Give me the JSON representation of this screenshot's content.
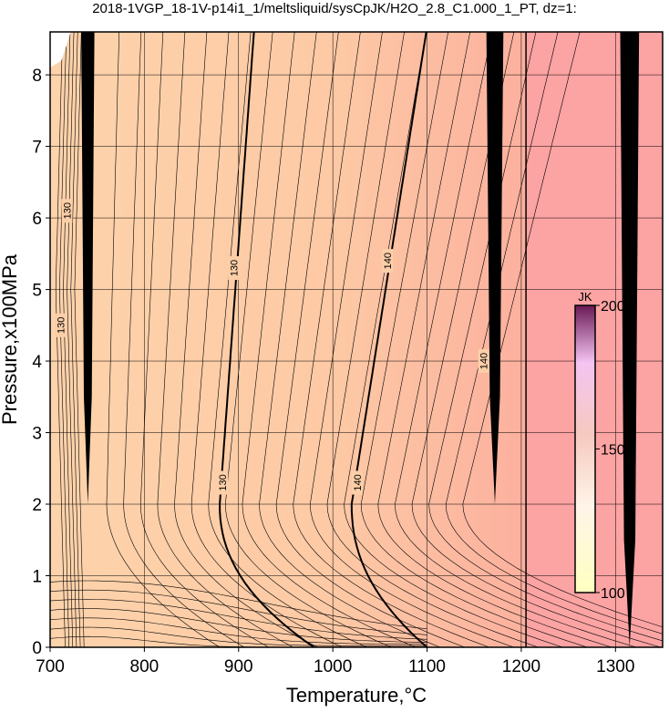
{
  "chart_data": {
    "type": "contour",
    "title": "2018-1VGP_18-1V-p14i1_1/meltsliquid/sysCpJK/H2O_2.8_C1.000_1_PT, dz=1:",
    "x_label": "Temperature,°C",
    "y_label": "Pressure,x100MPa",
    "xlim": [
      700,
      1350
    ],
    "ylim": [
      0,
      8.6
    ],
    "xticks": [
      700,
      800,
      900,
      1000,
      1100,
      1200,
      1300
    ],
    "yticks": [
      0,
      1,
      2,
      3,
      4,
      5,
      6,
      7,
      8
    ],
    "grid": true,
    "contour_labels": [
      {
        "value": 130,
        "x": 711,
        "y": 4.5
      },
      {
        "value": 130,
        "x": 718,
        "y": 6.1
      },
      {
        "value": 130,
        "x": 883,
        "y": 2.3
      },
      {
        "value": 130,
        "x": 895,
        "y": 5.3
      },
      {
        "value": 140,
        "x": 1026,
        "y": 2.3
      },
      {
        "value": 140,
        "x": 1058,
        "y": 5.4
      },
      {
        "value": 140,
        "x": 1160,
        "y": 4.0
      }
    ],
    "colorbar": {
      "label": "JK",
      "lim": [
        100,
        200
      ],
      "ticks": [
        100,
        150,
        200
      ]
    }
  }
}
